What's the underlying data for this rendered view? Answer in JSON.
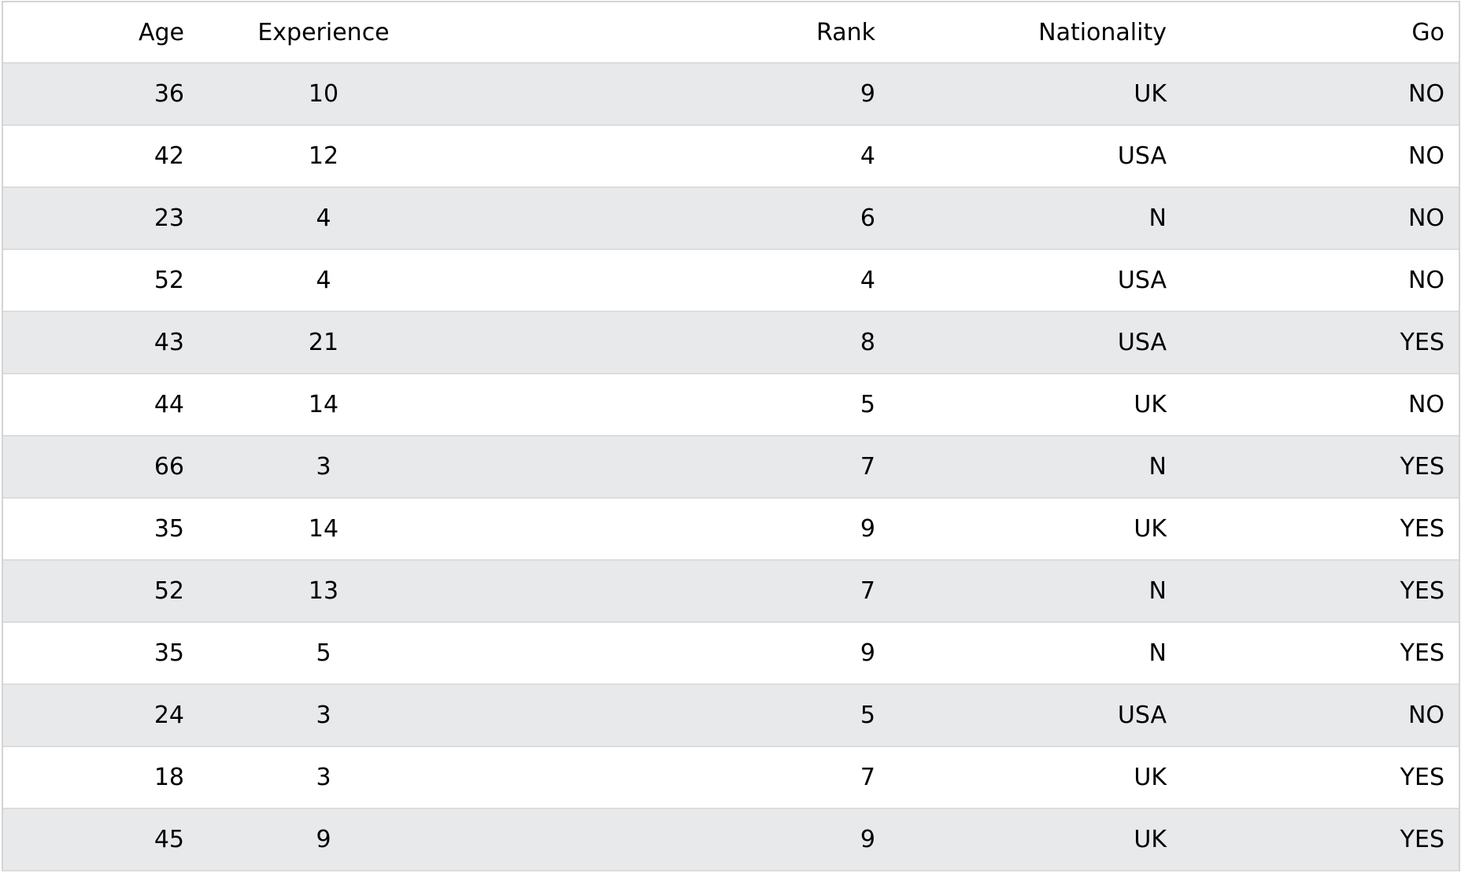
{
  "table": {
    "headers": [
      "Age",
      "Experience",
      "Rank",
      "Nationality",
      "Go"
    ],
    "rows": [
      [
        "36",
        "10",
        "9",
        "UK",
        "NO"
      ],
      [
        "42",
        "12",
        "4",
        "USA",
        "NO"
      ],
      [
        "23",
        "4",
        "6",
        "N",
        "NO"
      ],
      [
        "52",
        "4",
        "4",
        "USA",
        "NO"
      ],
      [
        "43",
        "21",
        "8",
        "USA",
        "YES"
      ],
      [
        "44",
        "14",
        "5",
        "UK",
        "NO"
      ],
      [
        "66",
        "3",
        "7",
        "N",
        "YES"
      ],
      [
        "35",
        "14",
        "9",
        "UK",
        "YES"
      ],
      [
        "52",
        "13",
        "7",
        "N",
        "YES"
      ],
      [
        "35",
        "5",
        "9",
        "N",
        "YES"
      ],
      [
        "24",
        "3",
        "5",
        "USA",
        "NO"
      ],
      [
        "18",
        "3",
        "7",
        "UK",
        "YES"
      ],
      [
        "45",
        "9",
        "9",
        "UK",
        "YES"
      ]
    ]
  },
  "colors": {
    "stripe": "#e8e9eb",
    "background": "#ffffff",
    "border": "#dcdcdc"
  }
}
